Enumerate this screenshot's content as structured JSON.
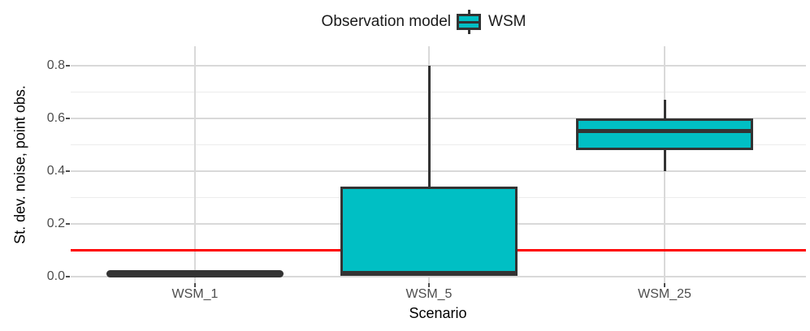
{
  "legend": {
    "title": "Observation model",
    "items": [
      {
        "label": "WSM",
        "fill": "#00BFC4",
        "stroke": "#333333"
      }
    ]
  },
  "axes": {
    "y": {
      "title": "St. dev. noise, point obs.",
      "ticks": [
        "0.0",
        "0.2",
        "0.4",
        "0.6",
        "0.8"
      ],
      "tick_values": [
        0.0,
        0.2,
        0.4,
        0.6,
        0.8
      ],
      "minor_values": [
        0.1,
        0.3,
        0.5,
        0.7
      ]
    },
    "x": {
      "title": "Scenario",
      "categories": [
        "WSM_1",
        "WSM_5",
        "WSM_25"
      ]
    }
  },
  "chart_data": {
    "type": "boxplot",
    "title": "",
    "xlabel": "Scenario",
    "ylabel": "St. dev. noise, point obs.",
    "legend_position": "top",
    "grid": true,
    "categories": [
      "WSM_1",
      "WSM_5",
      "WSM_25"
    ],
    "series": [
      {
        "name": "WSM",
        "boxes": [
          {
            "category": "WSM_1",
            "min": 0.01,
            "q1": 0.01,
            "median": 0.01,
            "q3": 0.01,
            "max": 0.01
          },
          {
            "category": "WSM_5",
            "min": 0.01,
            "q1": 0.01,
            "median": 0.01,
            "q3": 0.34,
            "max": 0.8
          },
          {
            "category": "WSM_25",
            "min": 0.4,
            "q1": 0.48,
            "median": 0.55,
            "q3": 0.6,
            "max": 0.67
          }
        ]
      }
    ],
    "reference_line": {
      "y": 0.1,
      "color": "#FF0000"
    },
    "ylim": [
      -0.03,
      0.84
    ],
    "y_major_ticks": [
      0.0,
      0.2,
      0.4,
      0.6,
      0.8
    ],
    "y_minor_ticks": [
      0.1,
      0.3,
      0.5,
      0.7
    ]
  },
  "colors": {
    "box_fill": "#00BFC4",
    "box_stroke": "#333333",
    "grid_major": "#D9D9D9",
    "grid_minor": "#ECECEC",
    "tick_label": "#4D4D4D",
    "axis_title": "#000000",
    "reference": "#FF0000",
    "background": "#FFFFFF"
  }
}
